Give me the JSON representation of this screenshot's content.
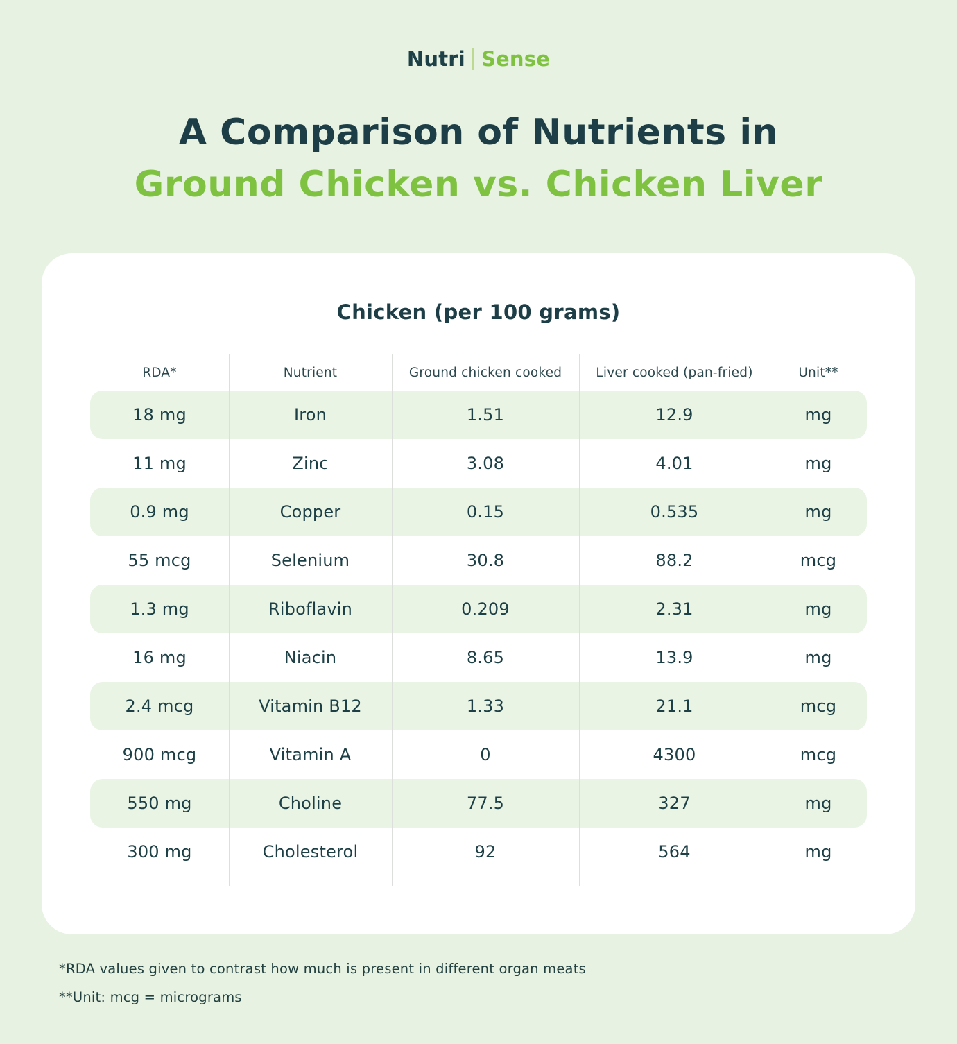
{
  "brand": {
    "left": "Nutri",
    "right": "Sense"
  },
  "title": {
    "line1": "A Comparison of Nutrients in",
    "line2": "Ground Chicken vs. Chicken Liver"
  },
  "card": {
    "title": "Chicken (per 100 grams)"
  },
  "chart_data": {
    "type": "table",
    "title": "Chicken (per 100 grams)",
    "columns": [
      "RDA*",
      "Nutrient",
      "Ground chicken cooked",
      "Liver cooked (pan-fried)",
      "Unit**"
    ],
    "rows": [
      [
        "18 mg",
        "Iron",
        "1.51",
        "12.9",
        "mg"
      ],
      [
        "11 mg",
        "Zinc",
        "3.08",
        "4.01",
        "mg"
      ],
      [
        "0.9 mg",
        "Copper",
        "0.15",
        "0.535",
        "mg"
      ],
      [
        "55 mcg",
        "Selenium",
        "30.8",
        "88.2",
        "mcg"
      ],
      [
        "1.3 mg",
        "Riboflavin",
        "0.209",
        "2.31",
        "mg"
      ],
      [
        "16 mg",
        "Niacin",
        "8.65",
        "13.9",
        "mg"
      ],
      [
        "2.4 mcg",
        "Vitamin B12",
        "1.33",
        "21.1",
        "mcg"
      ],
      [
        "900 mcg",
        "Vitamin A",
        "0",
        "4300",
        "mcg"
      ],
      [
        "550 mg",
        "Choline",
        "77.5",
        "327",
        "mg"
      ],
      [
        "300 mg",
        "Cholesterol",
        "92",
        "564",
        "mg"
      ]
    ]
  },
  "footnotes": [
    "*RDA values given to contrast how much is present in different organ meats",
    "**Unit: mcg = micrograms"
  ],
  "colors": {
    "background": "#e7f2e2",
    "accent_green": "#7fc241",
    "dark_teal": "#1d3e46",
    "row_highlight": "#e9f4e5",
    "divider": "#dcdfdc"
  }
}
